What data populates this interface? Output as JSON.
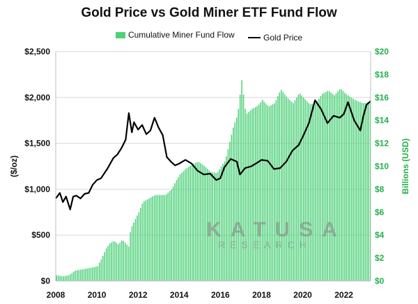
{
  "chart_data": {
    "type": "bar+line",
    "title": "Gold Price vs Gold Miner ETF Fund Flow",
    "ylabel_left": "($/oz)",
    "ylabel_right": "Billions (USD)",
    "xlim": [
      2008,
      2023.3
    ],
    "ylim_left": [
      0,
      2500
    ],
    "ylim_right": [
      0,
      20
    ],
    "x_ticks": [
      "2008",
      "2010",
      "2012",
      "2014",
      "2016",
      "2018",
      "2020",
      "2022"
    ],
    "y_ticks_left": [
      "$0",
      "$500",
      "$1,000",
      "$1,500",
      "$2,000",
      "$2,500"
    ],
    "y_ticks_right": [
      "$0",
      "$2",
      "$4",
      "$6",
      "$8",
      "$10",
      "$12",
      "$14",
      "$16",
      "$18",
      "$20"
    ],
    "grid": true,
    "legend": "top",
    "series": [
      {
        "name": "Cumulative Miner Fund Flow",
        "axis": "right",
        "color": "#4fd17a",
        "kind": "bar",
        "points": [
          [
            2008.0,
            0.5
          ],
          [
            2008.3,
            0.4
          ],
          [
            2008.6,
            0.5
          ],
          [
            2008.9,
            0.9
          ],
          [
            2009.2,
            1.0
          ],
          [
            2009.5,
            1.1
          ],
          [
            2009.8,
            1.2
          ],
          [
            2010.0,
            1.3
          ],
          [
            2010.2,
            2.0
          ],
          [
            2010.4,
            2.8
          ],
          [
            2010.6,
            3.3
          ],
          [
            2010.8,
            3.5
          ],
          [
            2011.0,
            3.2
          ],
          [
            2011.2,
            3.6
          ],
          [
            2011.5,
            3.0
          ],
          [
            2011.6,
            4.5
          ],
          [
            2011.8,
            5.3
          ],
          [
            2012.0,
            6.0
          ],
          [
            2012.2,
            6.9
          ],
          [
            2012.5,
            7.2
          ],
          [
            2012.8,
            7.5
          ],
          [
            2013.0,
            7.5
          ],
          [
            2013.3,
            7.5
          ],
          [
            2013.6,
            8.0
          ],
          [
            2013.8,
            8.7
          ],
          [
            2014.0,
            9.3
          ],
          [
            2014.3,
            9.8
          ],
          [
            2014.6,
            10.2
          ],
          [
            2014.9,
            10.4
          ],
          [
            2015.2,
            10.0
          ],
          [
            2015.5,
            9.5
          ],
          [
            2015.8,
            9.4
          ],
          [
            2016.0,
            10.0
          ],
          [
            2016.2,
            10.5
          ],
          [
            2016.4,
            12.0
          ],
          [
            2016.6,
            13.5
          ],
          [
            2016.8,
            14.5
          ],
          [
            2017.0,
            17.5
          ],
          [
            2017.2,
            14.5
          ],
          [
            2017.5,
            15.0
          ],
          [
            2017.8,
            15.3
          ],
          [
            2018.0,
            15.8
          ],
          [
            2018.3,
            15.2
          ],
          [
            2018.6,
            15.5
          ],
          [
            2018.9,
            16.7
          ],
          [
            2019.2,
            16.0
          ],
          [
            2019.5,
            15.5
          ],
          [
            2019.8,
            16.4
          ],
          [
            2020.0,
            16.0
          ],
          [
            2020.3,
            15.4
          ],
          [
            2020.6,
            15.5
          ],
          [
            2020.9,
            16.3
          ],
          [
            2021.2,
            16.6
          ],
          [
            2021.5,
            16.2
          ],
          [
            2021.8,
            16.8
          ],
          [
            2022.0,
            16.4
          ],
          [
            2022.3,
            16.0
          ],
          [
            2022.6,
            15.7
          ],
          [
            2022.9,
            15.5
          ],
          [
            2023.2,
            15.6
          ]
        ]
      },
      {
        "name": "Gold Price",
        "axis": "left",
        "color": "#000000",
        "kind": "line",
        "points": [
          [
            2008.0,
            900
          ],
          [
            2008.2,
            960
          ],
          [
            2008.35,
            860
          ],
          [
            2008.5,
            920
          ],
          [
            2008.7,
            780
          ],
          [
            2008.85,
            920
          ],
          [
            2009.0,
            930
          ],
          [
            2009.2,
            900
          ],
          [
            2009.4,
            950
          ],
          [
            2009.6,
            960
          ],
          [
            2009.8,
            1050
          ],
          [
            2010.0,
            1100
          ],
          [
            2010.2,
            1120
          ],
          [
            2010.5,
            1220
          ],
          [
            2010.8,
            1340
          ],
          [
            2011.0,
            1380
          ],
          [
            2011.2,
            1450
          ],
          [
            2011.4,
            1540
          ],
          [
            2011.55,
            1830
          ],
          [
            2011.7,
            1620
          ],
          [
            2011.8,
            1730
          ],
          [
            2012.0,
            1650
          ],
          [
            2012.2,
            1700
          ],
          [
            2012.4,
            1600
          ],
          [
            2012.6,
            1640
          ],
          [
            2012.8,
            1780
          ],
          [
            2013.0,
            1670
          ],
          [
            2013.2,
            1590
          ],
          [
            2013.4,
            1350
          ],
          [
            2013.6,
            1300
          ],
          [
            2013.8,
            1260
          ],
          [
            2014.0,
            1280
          ],
          [
            2014.3,
            1320
          ],
          [
            2014.6,
            1280
          ],
          [
            2014.9,
            1200
          ],
          [
            2015.2,
            1160
          ],
          [
            2015.5,
            1170
          ],
          [
            2015.8,
            1100
          ],
          [
            2016.0,
            1120
          ],
          [
            2016.2,
            1240
          ],
          [
            2016.5,
            1330
          ],
          [
            2016.8,
            1300
          ],
          [
            2016.95,
            1160
          ],
          [
            2017.2,
            1230
          ],
          [
            2017.5,
            1250
          ],
          [
            2017.8,
            1290
          ],
          [
            2018.0,
            1320
          ],
          [
            2018.3,
            1310
          ],
          [
            2018.6,
            1220
          ],
          [
            2018.9,
            1230
          ],
          [
            2019.2,
            1300
          ],
          [
            2019.5,
            1420
          ],
          [
            2019.8,
            1480
          ],
          [
            2020.0,
            1570
          ],
          [
            2020.3,
            1720
          ],
          [
            2020.6,
            1970
          ],
          [
            2020.9,
            1870
          ],
          [
            2021.2,
            1720
          ],
          [
            2021.5,
            1800
          ],
          [
            2021.8,
            1780
          ],
          [
            2022.0,
            1820
          ],
          [
            2022.2,
            1950
          ],
          [
            2022.5,
            1750
          ],
          [
            2022.8,
            1640
          ],
          [
            2022.95,
            1800
          ],
          [
            2023.1,
            1920
          ],
          [
            2023.3,
            1960
          ]
        ]
      }
    ]
  },
  "watermark": {
    "brand": "KATUSA",
    "sub": "RESEARCH"
  }
}
